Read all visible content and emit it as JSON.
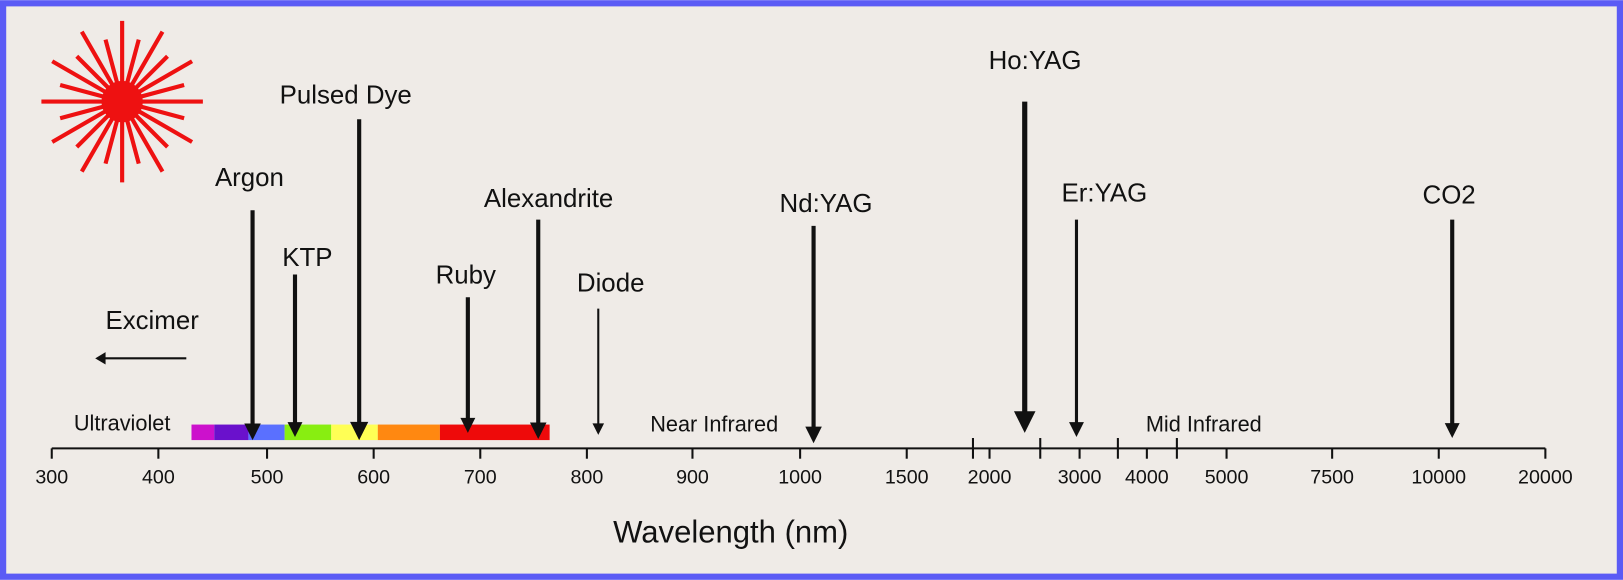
{
  "lasers": [
    {
      "label": "Excimer"
    },
    {
      "label": "Argon"
    },
    {
      "label": "KTP"
    },
    {
      "label": "Pulsed Dye"
    },
    {
      "label": "Ruby"
    },
    {
      "label": "Alexandrite"
    },
    {
      "label": "Diode"
    },
    {
      "label": "Nd:YAG"
    },
    {
      "label": "Ho:YAG"
    },
    {
      "label": "Er:YAG"
    },
    {
      "label": "CO2"
    }
  ],
  "regions": [
    {
      "label": "Ultraviolet"
    },
    {
      "label": "Near Infrared"
    },
    {
      "label": "Mid Infrared"
    }
  ],
  "axis": {
    "title": "Wavelength (nm)",
    "ticks": [
      "300",
      "400",
      "500",
      "600",
      "700",
      "800",
      "900",
      "1000",
      "1500",
      "2000",
      "3000",
      "4000",
      "5000",
      "7500",
      "10000",
      "20000"
    ]
  }
}
